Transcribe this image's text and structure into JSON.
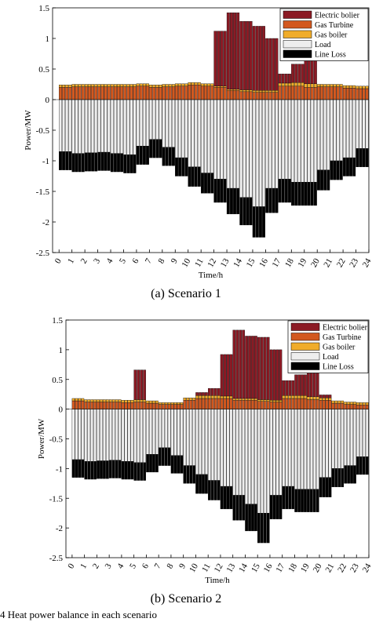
{
  "figure_caption": "4   Heat power balance in each scenario",
  "legend_colors": {
    "Electric bolier": "#8b1a24",
    "Gas Turbine": "#d2581f",
    "Gas boiler": "#f0ac2a",
    "Load": "#eeeeee",
    "Line Loss": "#000000"
  },
  "chart_data": [
    {
      "type": "bar",
      "stacked": true,
      "caption": "(a) Scenario 1",
      "xlabel": "Time/h",
      "ylabel": "Power/MW",
      "ylim": [
        -2.5,
        1.5
      ],
      "yticks": [
        1.5,
        1,
        0.5,
        0,
        -0.5,
        -1,
        -1.5,
        -2,
        -2.5
      ],
      "xticks": [
        "0",
        "1",
        "2",
        "3",
        "4",
        "5",
        "6",
        "7",
        "8",
        "9",
        "10",
        "11",
        "12",
        "13",
        "14",
        "15",
        "16",
        "17",
        "18",
        "19",
        "20",
        "21",
        "22",
        "23",
        "24"
      ],
      "grid": false,
      "legend_position": "top-right",
      "x": [
        0,
        1,
        2,
        3,
        4,
        5,
        6,
        7,
        8,
        9,
        10,
        11,
        12,
        13,
        14,
        15,
        16,
        17,
        18,
        19,
        20,
        21,
        22,
        23
      ],
      "series": [
        {
          "name": "Electric bolier",
          "values": [
            0,
            0,
            0,
            0,
            0,
            0,
            0,
            0,
            0,
            0,
            0,
            0,
            0.9,
            1.25,
            1.12,
            1.05,
            0.85,
            0.15,
            0.3,
            0.38,
            0,
            0,
            0,
            0
          ]
        },
        {
          "name": "Gas Turbine",
          "values": [
            0.2,
            0.21,
            0.21,
            0.21,
            0.21,
            0.21,
            0.22,
            0.2,
            0.21,
            0.22,
            0.24,
            0.22,
            0.2,
            0.15,
            0.13,
            0.12,
            0.12,
            0.22,
            0.22,
            0.2,
            0.21,
            0.21,
            0.19,
            0.18
          ]
        },
        {
          "name": "Gas boiler",
          "values": [
            0.04,
            0.04,
            0.04,
            0.04,
            0.04,
            0.04,
            0.04,
            0.04,
            0.04,
            0.04,
            0.04,
            0.04,
            0.02,
            0.02,
            0.03,
            0.03,
            0.03,
            0.05,
            0.06,
            0.06,
            0.04,
            0.04,
            0.04,
            0.04
          ]
        },
        {
          "name": "Load",
          "values": [
            -0.85,
            -0.88,
            -0.87,
            -0.86,
            -0.88,
            -0.9,
            -0.76,
            -0.65,
            -0.78,
            -0.95,
            -1.1,
            -1.2,
            -1.3,
            -1.45,
            -1.6,
            -1.75,
            -1.45,
            -1.3,
            -1.35,
            -1.35,
            -1.15,
            -1.0,
            -0.95,
            -0.8
          ]
        },
        {
          "name": "Line Loss",
          "values": [
            -0.3,
            -0.3,
            -0.3,
            -0.3,
            -0.3,
            -0.3,
            -0.3,
            -0.3,
            -0.3,
            -0.3,
            -0.32,
            -0.33,
            -0.38,
            -0.42,
            -0.45,
            -0.5,
            -0.4,
            -0.38,
            -0.38,
            -0.38,
            -0.33,
            -0.31,
            -0.3,
            -0.3
          ]
        }
      ]
    },
    {
      "type": "bar",
      "stacked": true,
      "caption": "(b) Scenario 2",
      "xlabel": "Time/h",
      "ylabel": "Power/MW",
      "ylim": [
        -2.5,
        1.5
      ],
      "yticks": [
        1.5,
        1,
        0.5,
        0,
        -0.5,
        -1,
        -1.5,
        -2,
        -2.5
      ],
      "xticks": [
        "0",
        "1",
        "2",
        "3",
        "4",
        "5",
        "6",
        "7",
        "8",
        "9",
        "10",
        "11",
        "12",
        "13",
        "14",
        "15",
        "16",
        "17",
        "18",
        "19",
        "20",
        "21",
        "22",
        "23",
        "24"
      ],
      "grid": false,
      "legend_position": "top-right",
      "x": [
        0,
        1,
        2,
        3,
        4,
        5,
        6,
        7,
        8,
        9,
        10,
        11,
        12,
        13,
        14,
        15,
        16,
        17,
        18,
        19,
        20,
        21,
        22,
        23
      ],
      "series": [
        {
          "name": "Electric bolier",
          "values": [
            0,
            0,
            0,
            0,
            0,
            0.5,
            0,
            0,
            0,
            0,
            0.05,
            0.12,
            0.7,
            1.15,
            1.05,
            1.05,
            0.85,
            0.25,
            0.35,
            0.4,
            0.05,
            0,
            0,
            0
          ]
        },
        {
          "name": "Gas Turbine",
          "values": [
            0.14,
            0.12,
            0.12,
            0.12,
            0.11,
            0.12,
            0.1,
            0.08,
            0.08,
            0.15,
            0.18,
            0.18,
            0.18,
            0.15,
            0.15,
            0.13,
            0.12,
            0.18,
            0.18,
            0.16,
            0.15,
            0.1,
            0.08,
            0.07
          ]
        },
        {
          "name": "Gas boiler",
          "values": [
            0.04,
            0.04,
            0.04,
            0.04,
            0.04,
            0.04,
            0.04,
            0.03,
            0.03,
            0.04,
            0.05,
            0.05,
            0.04,
            0.03,
            0.03,
            0.03,
            0.03,
            0.05,
            0.05,
            0.05,
            0.04,
            0.04,
            0.04,
            0.04
          ]
        },
        {
          "name": "Load",
          "values": [
            -0.85,
            -0.88,
            -0.87,
            -0.86,
            -0.88,
            -0.9,
            -0.76,
            -0.65,
            -0.78,
            -0.95,
            -1.1,
            -1.2,
            -1.3,
            -1.45,
            -1.6,
            -1.75,
            -1.45,
            -1.3,
            -1.35,
            -1.35,
            -1.15,
            -1.0,
            -0.95,
            -0.8
          ]
        },
        {
          "name": "Line Loss",
          "values": [
            -0.3,
            -0.3,
            -0.3,
            -0.3,
            -0.3,
            -0.3,
            -0.3,
            -0.3,
            -0.3,
            -0.3,
            -0.32,
            -0.33,
            -0.38,
            -0.42,
            -0.45,
            -0.5,
            -0.4,
            -0.38,
            -0.38,
            -0.38,
            -0.33,
            -0.31,
            -0.3,
            -0.3
          ]
        }
      ]
    }
  ]
}
